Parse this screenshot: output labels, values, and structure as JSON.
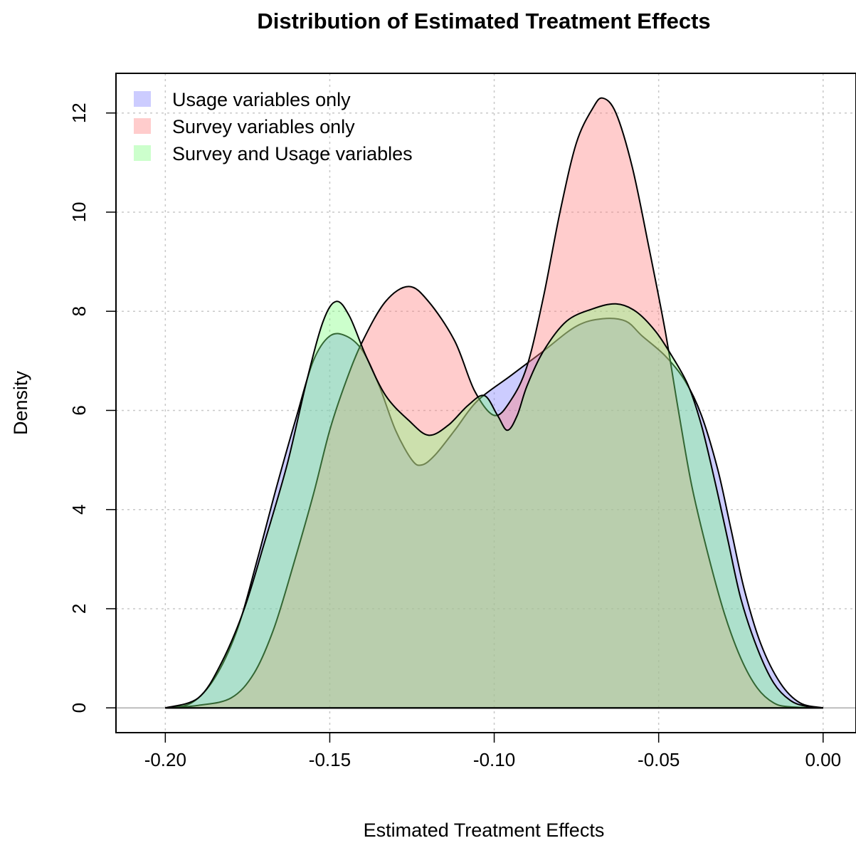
{
  "chart_data": {
    "type": "area",
    "title": "Distribution of Estimated Treatment Effects",
    "xlabel": "Estimated Treatment Effects",
    "ylabel": "Density",
    "xlim": [
      -0.215,
      0.01
    ],
    "ylim": [
      -0.5,
      12.8
    ],
    "xticks": [
      -0.2,
      -0.15,
      -0.1,
      -0.05,
      0.0
    ],
    "xtick_labels": [
      "-0.20",
      "-0.15",
      "-0.10",
      "-0.05",
      "0.00"
    ],
    "yticks": [
      0,
      2,
      4,
      6,
      8,
      10,
      12
    ],
    "ytick_labels": [
      "0",
      "2",
      "4",
      "6",
      "8",
      "10",
      "12"
    ],
    "grid": true,
    "legend_position": "top-left",
    "series": [
      {
        "name": "Usage variables only",
        "color": "#8080ff",
        "points": [
          [
            -0.2,
            0.0
          ],
          [
            -0.192,
            0.1
          ],
          [
            -0.185,
            0.6
          ],
          [
            -0.178,
            1.6
          ],
          [
            -0.172,
            3.0
          ],
          [
            -0.166,
            4.5
          ],
          [
            -0.16,
            5.9
          ],
          [
            -0.155,
            7.0
          ],
          [
            -0.15,
            7.5
          ],
          [
            -0.145,
            7.5
          ],
          [
            -0.14,
            7.2
          ],
          [
            -0.135,
            6.5
          ],
          [
            -0.13,
            5.6
          ],
          [
            -0.125,
            5.0
          ],
          [
            -0.122,
            4.9
          ],
          [
            -0.118,
            5.1
          ],
          [
            -0.112,
            5.6
          ],
          [
            -0.105,
            6.2
          ],
          [
            -0.095,
            6.7
          ],
          [
            -0.085,
            7.2
          ],
          [
            -0.075,
            7.7
          ],
          [
            -0.067,
            7.85
          ],
          [
            -0.06,
            7.8
          ],
          [
            -0.055,
            7.5
          ],
          [
            -0.048,
            7.1
          ],
          [
            -0.042,
            6.6
          ],
          [
            -0.037,
            5.9
          ],
          [
            -0.032,
            4.8
          ],
          [
            -0.028,
            3.6
          ],
          [
            -0.024,
            2.4
          ],
          [
            -0.019,
            1.3
          ],
          [
            -0.013,
            0.5
          ],
          [
            -0.007,
            0.1
          ],
          [
            0.0,
            0.0
          ]
        ]
      },
      {
        "name": "Survey variables only",
        "color": "#ff8080",
        "points": [
          [
            -0.2,
            0.0
          ],
          [
            -0.19,
            0.05
          ],
          [
            -0.18,
            0.2
          ],
          [
            -0.173,
            0.7
          ],
          [
            -0.167,
            1.6
          ],
          [
            -0.161,
            2.9
          ],
          [
            -0.155,
            4.3
          ],
          [
            -0.15,
            5.6
          ],
          [
            -0.145,
            6.6
          ],
          [
            -0.14,
            7.4
          ],
          [
            -0.133,
            8.2
          ],
          [
            -0.126,
            8.5
          ],
          [
            -0.12,
            8.2
          ],
          [
            -0.112,
            7.4
          ],
          [
            -0.106,
            6.4
          ],
          [
            -0.1,
            5.9
          ],
          [
            -0.095,
            6.2
          ],
          [
            -0.09,
            6.9
          ],
          [
            -0.085,
            8.3
          ],
          [
            -0.08,
            10.0
          ],
          [
            -0.075,
            11.4
          ],
          [
            -0.07,
            12.1
          ],
          [
            -0.067,
            12.3
          ],
          [
            -0.063,
            12.0
          ],
          [
            -0.058,
            10.9
          ],
          [
            -0.053,
            9.3
          ],
          [
            -0.048,
            7.6
          ],
          [
            -0.044,
            6.0
          ],
          [
            -0.04,
            4.5
          ],
          [
            -0.035,
            3.1
          ],
          [
            -0.03,
            1.9
          ],
          [
            -0.025,
            1.0
          ],
          [
            -0.02,
            0.4
          ],
          [
            -0.015,
            0.1
          ],
          [
            -0.01,
            0.02
          ],
          [
            0.0,
            0.0
          ]
        ]
      },
      {
        "name": "Survey and Usage variables",
        "color": "#80ff80",
        "points": [
          [
            -0.2,
            0.0
          ],
          [
            -0.19,
            0.2
          ],
          [
            -0.183,
            0.9
          ],
          [
            -0.176,
            2.0
          ],
          [
            -0.17,
            3.3
          ],
          [
            -0.163,
            4.9
          ],
          [
            -0.157,
            6.6
          ],
          [
            -0.152,
            7.8
          ],
          [
            -0.148,
            8.2
          ],
          [
            -0.144,
            7.9
          ],
          [
            -0.139,
            7.1
          ],
          [
            -0.133,
            6.3
          ],
          [
            -0.126,
            5.8
          ],
          [
            -0.12,
            5.5
          ],
          [
            -0.114,
            5.7
          ],
          [
            -0.108,
            6.1
          ],
          [
            -0.103,
            6.3
          ],
          [
            -0.099,
            5.9
          ],
          [
            -0.096,
            5.6
          ],
          [
            -0.093,
            5.9
          ],
          [
            -0.09,
            6.5
          ],
          [
            -0.085,
            7.2
          ],
          [
            -0.078,
            7.8
          ],
          [
            -0.07,
            8.05
          ],
          [
            -0.063,
            8.15
          ],
          [
            -0.057,
            8.0
          ],
          [
            -0.051,
            7.6
          ],
          [
            -0.046,
            7.1
          ],
          [
            -0.041,
            6.5
          ],
          [
            -0.037,
            5.7
          ],
          [
            -0.033,
            4.6
          ],
          [
            -0.029,
            3.4
          ],
          [
            -0.025,
            2.2
          ],
          [
            -0.02,
            1.2
          ],
          [
            -0.015,
            0.5
          ],
          [
            -0.01,
            0.15
          ],
          [
            -0.005,
            0.03
          ],
          [
            0.0,
            0.0
          ]
        ]
      }
    ]
  }
}
